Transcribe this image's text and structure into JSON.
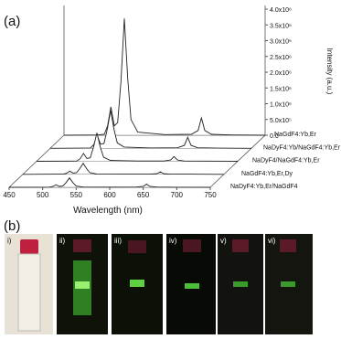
{
  "panel_labels": [
    "(a)",
    "(b)"
  ],
  "chart_data": {
    "type": "line",
    "x_label": "Wavelength (nm)",
    "y_label": "Intensity (a.u.)",
    "x": [
      450,
      500,
      510,
      515,
      520,
      525,
      530,
      535,
      540,
      545,
      550,
      560,
      600,
      640,
      650,
      655,
      660,
      670,
      700,
      750
    ],
    "xlim": [
      450,
      750
    ],
    "xticks": [
      450,
      500,
      550,
      600,
      650,
      700,
      750
    ],
    "ylim": [
      0,
      4000000
    ],
    "yticks": [
      {
        "value": 0,
        "label": "0.0"
      },
      {
        "value": 500000,
        "label": "5.0x10⁵"
      },
      {
        "value": 1000000,
        "label": "1.0x10⁶"
      },
      {
        "value": 1500000,
        "label": "1.5x10⁶"
      },
      {
        "value": 2000000,
        "label": "2.0x10⁶"
      },
      {
        "value": 2500000,
        "label": "2.5x10⁶"
      },
      {
        "value": 3000000,
        "label": "3.0x10⁶"
      },
      {
        "value": 3500000,
        "label": "3.5x10⁶"
      },
      {
        "value": 4000000,
        "label": "4.0x10⁶"
      }
    ],
    "series": [
      {
        "name": "NaGdF4:Yb,Er",
        "color": "#222222",
        "values": [
          0,
          10000,
          30000,
          300000,
          900000,
          300000,
          400000,
          1700000,
          3700000,
          1800000,
          500000,
          100000,
          20000,
          30000,
          150000,
          550000,
          150000,
          30000,
          10000,
          0
        ]
      },
      {
        "name": "NaDyF4:Yb/NaGdF4:Yb,Er",
        "color": "#222222",
        "values": [
          0,
          5000,
          10000,
          120000,
          400000,
          130000,
          150000,
          600000,
          1200000,
          600000,
          170000,
          40000,
          10000,
          15000,
          90000,
          350000,
          90000,
          15000,
          5000,
          0
        ]
      },
      {
        "name": "NaDyF4/NaGdF4:Yb,Er",
        "color": "#222222",
        "values": [
          0,
          5000,
          10000,
          80000,
          250000,
          90000,
          110000,
          450000,
          900000,
          450000,
          130000,
          30000,
          10000,
          10000,
          40000,
          150000,
          40000,
          10000,
          5000,
          0
        ]
      },
      {
        "name": "NaGdF4:Yb,Er,Dy",
        "color": "#222222",
        "values": [
          0,
          3000,
          5000,
          30000,
          100000,
          40000,
          50000,
          180000,
          350000,
          180000,
          50000,
          10000,
          5000,
          5000,
          20000,
          80000,
          20000,
          5000,
          3000,
          0
        ]
      },
      {
        "name": "NaDyF4:Yb,Er/NaGdF4",
        "color": "#222222",
        "values": [
          0,
          3000,
          5000,
          25000,
          80000,
          30000,
          40000,
          150000,
          300000,
          150000,
          40000,
          10000,
          5000,
          8000,
          30000,
          100000,
          30000,
          8000,
          3000,
          0
        ]
      }
    ]
  },
  "photo_labels": [
    "i)",
    "ii)",
    "iii)",
    "iv)",
    "v)",
    "vi)"
  ]
}
